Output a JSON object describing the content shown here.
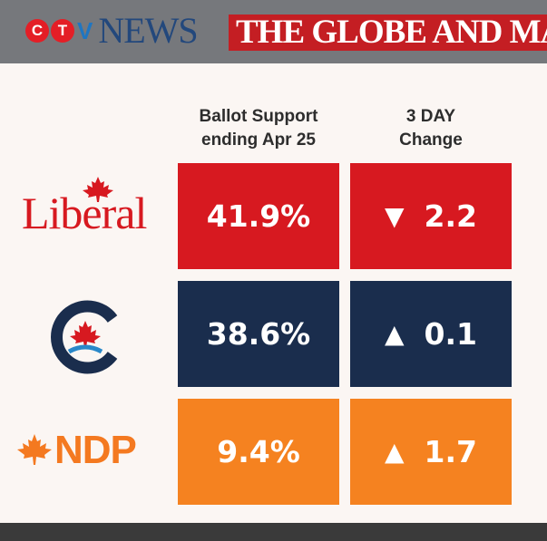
{
  "header": {
    "ctv_letters": [
      "C",
      "T"
    ],
    "ctv_v": "V",
    "ctv_news": "NEWS",
    "globe": "THE GLOBE AND MA"
  },
  "colors": {
    "liberal": "#d71920",
    "conservative": "#1a2d4d",
    "ndp": "#f58220",
    "ctv_c": "#e41e26",
    "ctv_t": "#e41e26"
  },
  "chart_data": {
    "type": "table",
    "columns": [
      "Ballot Support\nending Apr 25",
      "3 DAY\nChange"
    ],
    "column_lines": [
      [
        "Ballot Support",
        "ending Apr 25"
      ],
      [
        "3 DAY",
        "Change"
      ]
    ],
    "rows": [
      {
        "party": "Liberal",
        "logo_text": "Liberal",
        "support": 41.9,
        "support_label": "41.9%",
        "direction": "down",
        "arrow": "▼",
        "change": 2.2,
        "change_label": "2.2"
      },
      {
        "party": "Conservative",
        "logo_text": "",
        "support": 38.6,
        "support_label": "38.6%",
        "direction": "up",
        "arrow": "▲",
        "change": 0.1,
        "change_label": "0.1"
      },
      {
        "party": "NDP",
        "logo_text": "NDP",
        "support": 9.4,
        "support_label": "9.4%",
        "direction": "up",
        "arrow": "▲",
        "change": 1.7,
        "change_label": "1.7"
      }
    ]
  }
}
